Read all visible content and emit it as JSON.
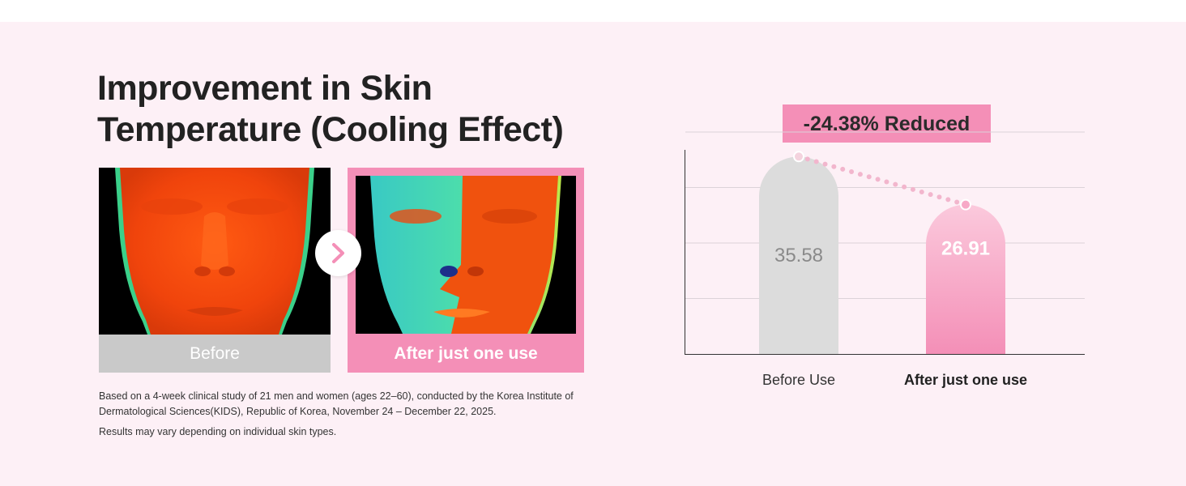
{
  "headline": {
    "line1": "Improvement in Skin",
    "line2": "Temperature (Cooling Effect)"
  },
  "photos": {
    "before_caption": "Before",
    "after_caption": "After just one use"
  },
  "notes": {
    "study": "Based on a 4-week clinical study of 21 men and women (ages 22–60), conducted by the Korea Institute of Dermatological Sciences(KIDS), Republic of Korea, November 24 – December 22, 2025.",
    "disclaimer": "Results may vary depending on individual skin types."
  },
  "colors": {
    "accent_pink": "#f48fb7",
    "panel_bg": "#fdf0f6",
    "before_bar": "#dcdcdc",
    "after_bar": "#f48fb7"
  },
  "chart_data": {
    "type": "bar",
    "categories": [
      "Before Use",
      "After just one use"
    ],
    "values": [
      35.58,
      26.91
    ],
    "data_labels": [
      "35.58",
      "26.91"
    ],
    "badge": "-24.38% Reduced",
    "ylim": [
      0,
      40
    ],
    "grid": true
  }
}
